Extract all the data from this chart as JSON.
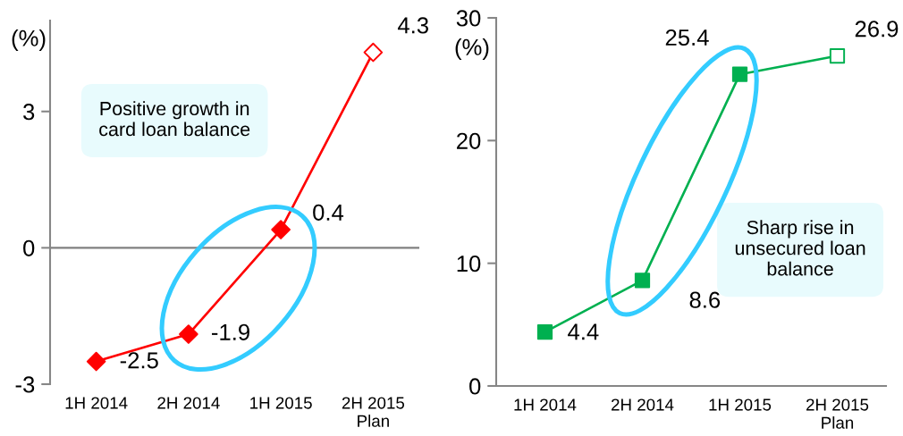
{
  "chart_data": [
    {
      "type": "line",
      "categories": [
        "1H 2014",
        "2H 2014",
        "1H 2015",
        "2H 2015\nPlan"
      ],
      "series": [
        {
          "color": "#ff0000",
          "colors": [
            "#ff0000",
            "#ff0000",
            "#ff0000",
            "#ffffff"
          ],
          "values": [
            -2.5,
            -1.9,
            0.4,
            4.3
          ]
        }
      ],
      "ylabel": "(%)",
      "ylim": [
        -3,
        5
      ],
      "yticks": [
        -3,
        0,
        3
      ],
      "marker": "diamond",
      "line_style": "solid",
      "data_labels": true,
      "ref_lines": [
        {
          "axis": "y",
          "value": 0,
          "color": "#808080"
        }
      ],
      "annotations": [
        "Positive growth in\ncard loan balance"
      ]
    },
    {
      "type": "line",
      "categories": [
        "1H 2014",
        "2H 2014",
        "1H 2015",
        "2H 2015\nPlan"
      ],
      "series": [
        {
          "color": "#00b050",
          "colors": [
            "#00b050",
            "#00b050",
            "#00b050",
            "#ffffff"
          ],
          "values": [
            4.4,
            8.6,
            25.4,
            26.9
          ]
        }
      ],
      "ylabel": "(%)",
      "ylim": [
        0,
        30
      ],
      "yticks": [
        0,
        10,
        20,
        30
      ],
      "marker": "square",
      "line_style": "solid",
      "data_labels": true,
      "annotations": [
        "Sharp rise in\nunsecured loan\nbalance"
      ]
    }
  ]
}
